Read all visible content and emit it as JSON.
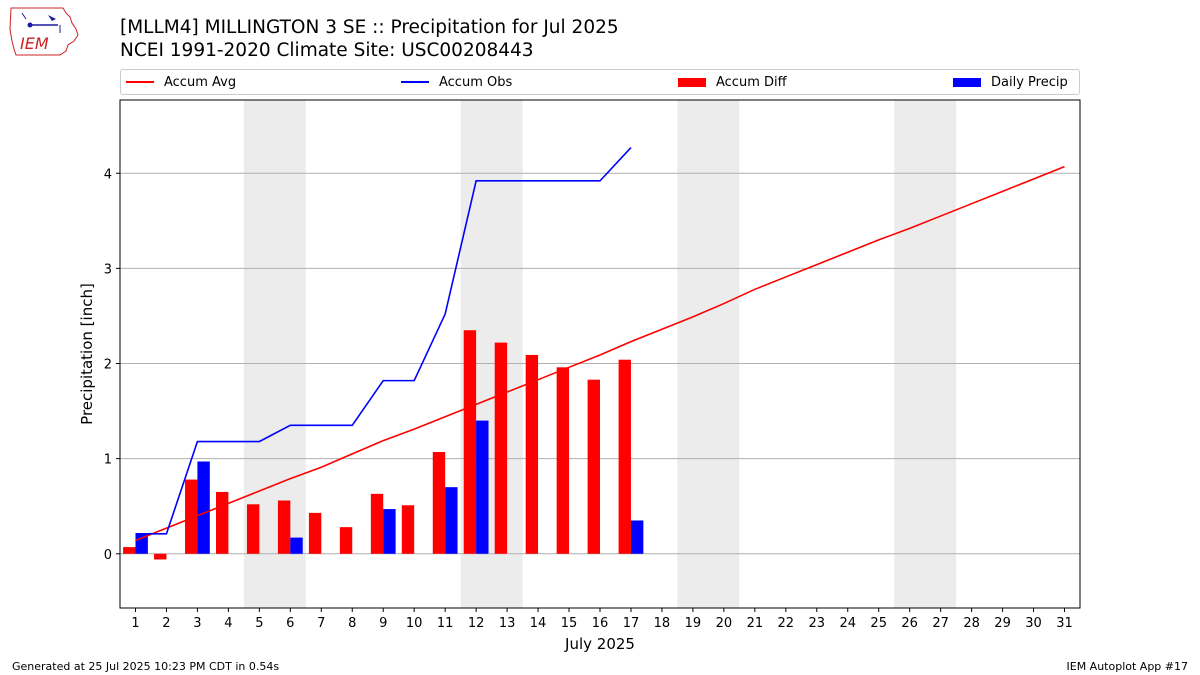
{
  "header": {
    "title_line1": "[MLLM4] MILLINGTON 3 SE :: Precipitation for Jul 2025",
    "title_line2": "NCEI 1991-2020 Climate Site: USC00208443",
    "logo_text": "IEM"
  },
  "footer": {
    "generated": "Generated at 25 Jul 2025 10:23 PM CDT in 0.54s",
    "app": "IEM Autoplot App #17"
  },
  "colors": {
    "accum_avg": "#ff0000",
    "accum_obs": "#0000ff",
    "accum_diff": "#ff0000",
    "daily_precip": "#0000ff",
    "weekend_shade": "#ececec",
    "grid": "#b0b0b0"
  },
  "chart_data": {
    "type": "bar",
    "xlabel": "July 2025",
    "ylabel": "Precipitation [inch]",
    "xlim": [
      0.5,
      31.5
    ],
    "ylim": [
      -0.57,
      4.77
    ],
    "yticks": [
      0,
      1,
      2,
      3,
      4
    ],
    "grid": "horizontal",
    "legend_placement": "top",
    "days": [
      1,
      2,
      3,
      4,
      5,
      6,
      7,
      8,
      9,
      10,
      11,
      12,
      13,
      14,
      15,
      16,
      17,
      18,
      19,
      20,
      21,
      22,
      23,
      24,
      25,
      26,
      27,
      28,
      29,
      30,
      31
    ],
    "weekend_spans": [
      [
        4.5,
        6.5
      ],
      [
        11.5,
        13.5
      ],
      [
        18.5,
        20.5
      ],
      [
        25.5,
        27.5
      ]
    ],
    "legend": [
      "Accum Avg",
      "Accum Obs",
      "Accum Diff",
      "Daily Precip"
    ],
    "series": [
      {
        "name": "Accum Avg",
        "kind": "line",
        "values": [
          0.14,
          0.27,
          0.4,
          0.53,
          0.66,
          0.79,
          0.91,
          1.05,
          1.19,
          1.31,
          1.44,
          1.57,
          1.7,
          1.83,
          1.96,
          2.09,
          2.23,
          2.36,
          2.49,
          2.63,
          2.78,
          2.91,
          3.04,
          3.17,
          3.3,
          3.42,
          3.55,
          3.68,
          3.81,
          3.94,
          4.07
        ]
      },
      {
        "name": "Accum Obs",
        "kind": "line",
        "values": [
          0.21,
          0.21,
          1.18,
          1.18,
          1.18,
          1.35,
          1.35,
          1.35,
          1.82,
          1.82,
          2.52,
          3.92,
          3.92,
          3.92,
          3.92,
          3.92,
          4.27
        ]
      },
      {
        "name": "Accum Diff",
        "kind": "bar",
        "values": [
          0.07,
          -0.06,
          0.78,
          0.65,
          0.52,
          0.56,
          0.43,
          0.28,
          0.63,
          0.51,
          1.07,
          2.35,
          2.22,
          2.09,
          1.96,
          1.83,
          2.04
        ]
      },
      {
        "name": "Daily Precip",
        "kind": "bar",
        "values": [
          0.21,
          0.0,
          0.97,
          0.0,
          0.0,
          0.17,
          0.0,
          0.0,
          0.47,
          0.0,
          0.7,
          1.4,
          0.0,
          0.0,
          0.0,
          0.0,
          0.35
        ]
      }
    ]
  }
}
